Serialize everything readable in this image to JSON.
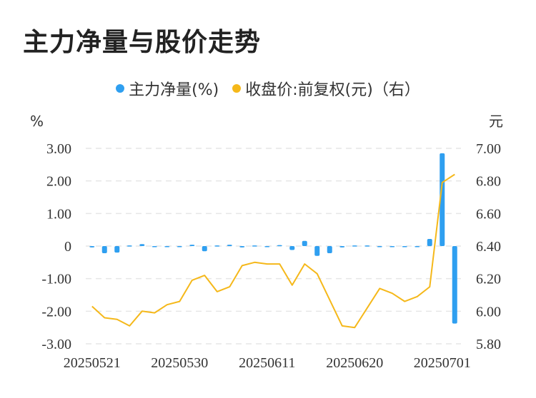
{
  "title": "主力净量与股价走势",
  "chart_data": {
    "type": "bar",
    "left_unit": "%",
    "right_unit": "元",
    "grid": true,
    "legend_position": "top",
    "series": [
      {
        "name": "主力净量(%)",
        "type": "bar",
        "axis": "left",
        "color": "#2f9ff0",
        "values": [
          -0.04,
          -0.22,
          -0.2,
          0.02,
          0.06,
          0.0,
          -0.02,
          0.0,
          0.04,
          -0.16,
          0.02,
          0.04,
          -0.04,
          0.02,
          0.0,
          0.03,
          -0.12,
          0.16,
          -0.3,
          -0.22,
          -0.04,
          0.02,
          0.02,
          -0.02,
          -0.02,
          -0.02,
          -0.02,
          0.22,
          2.85,
          -2.38
        ]
      },
      {
        "name": "收盘价:前复权(元)（右）",
        "type": "line",
        "axis": "right",
        "color": "#f5b81a",
        "values": [
          6.03,
          5.96,
          5.95,
          5.91,
          6.0,
          5.99,
          6.04,
          6.06,
          6.19,
          6.22,
          6.12,
          6.15,
          6.28,
          6.3,
          6.29,
          6.29,
          6.16,
          6.29,
          6.23,
          6.07,
          5.91,
          5.9,
          6.02,
          6.14,
          6.11,
          6.06,
          6.09,
          6.15,
          6.79,
          6.84
        ]
      }
    ],
    "x_tick_labels": [
      "20250521",
      "20250530",
      "20250611",
      "20250620",
      "20250701"
    ],
    "x_tick_indices": [
      0,
      7,
      14,
      21,
      28
    ],
    "left_ticks": [
      "3.00",
      "2.00",
      "1.00",
      "0",
      "-1.00",
      "-2.00",
      "-3.00"
    ],
    "left_tick_values": [
      3,
      2,
      1,
      0,
      -1,
      -2,
      -3
    ],
    "right_ticks": [
      "7.00",
      "6.80",
      "6.60",
      "6.40",
      "6.20",
      "6.00",
      "5.80"
    ],
    "right_tick_values": [
      7.0,
      6.8,
      6.6,
      6.4,
      6.2,
      6.0,
      5.8
    ],
    "ylim_left": [
      -3,
      3
    ],
    "ylim_right": [
      5.8,
      7.0
    ]
  }
}
